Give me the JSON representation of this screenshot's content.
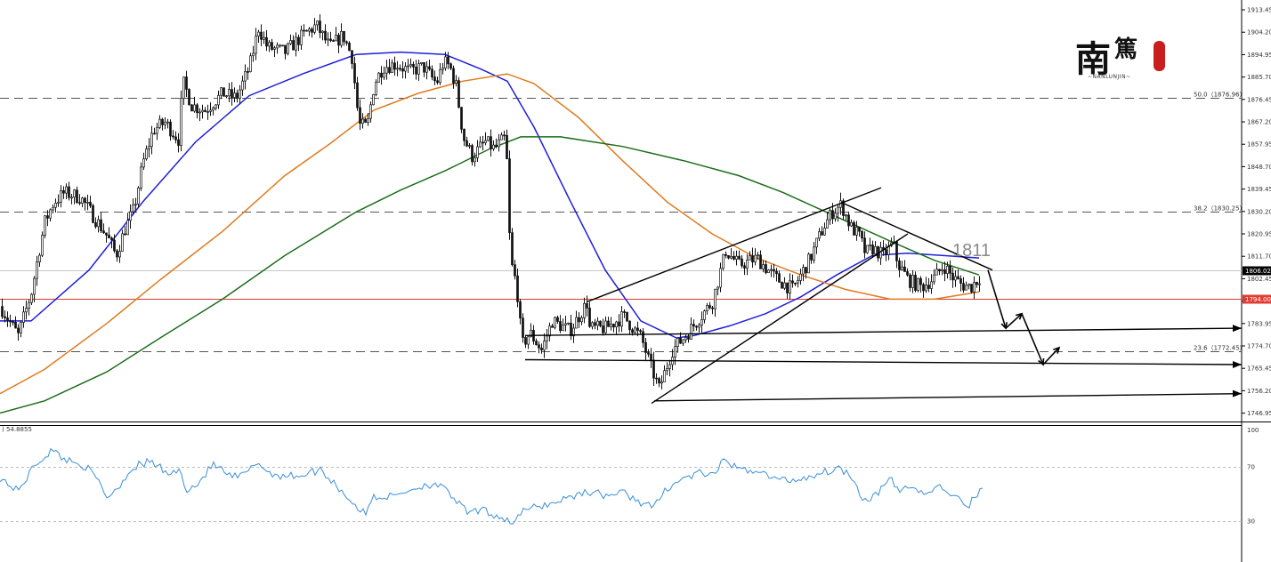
{
  "chart_data": [
    {
      "type": "candlestick",
      "panel": "price",
      "title": "",
      "ylim": [
        1743.5,
        1917.5
      ],
      "y_ticks": [
        "1913.45",
        "1904.20",
        "1894.95",
        "1885.70",
        "1876.45",
        "1867.20",
        "1857.95",
        "1848.70",
        "1839.45",
        "1830.20",
        "1820.95",
        "1811.70",
        "1802.45",
        "1793.20",
        "1783.95",
        "1774.70",
        "1765.45",
        "1756.20",
        "1746.95"
      ],
      "current_price": "1806.02",
      "horizontal_line": "1794.00",
      "annotation": "1811",
      "fibonacci": [
        {
          "level": 50.0,
          "price": 1876.96,
          "label": "50.0（1876.96）"
        },
        {
          "level": 38.2,
          "price": 1830.25,
          "label": "38.2（1830.25）"
        },
        {
          "level": 23.6,
          "price": 1772.45,
          "label": "23.6（1772.45）"
        }
      ],
      "close_path": [
        [
          0,
          1791
        ],
        [
          10,
          1785
        ],
        [
          20,
          1779
        ],
        [
          35,
          1797
        ],
        [
          42,
          1811
        ],
        [
          50,
          1826
        ],
        [
          60,
          1834
        ],
        [
          72,
          1838
        ],
        [
          90,
          1836
        ],
        [
          105,
          1828
        ],
        [
          120,
          1820
        ],
        [
          130,
          1812
        ],
        [
          140,
          1823
        ],
        [
          150,
          1831
        ],
        [
          160,
          1850
        ],
        [
          172,
          1864
        ],
        [
          185,
          1867
        ],
        [
          200,
          1860
        ],
        [
          205,
          1884
        ],
        [
          215,
          1874
        ],
        [
          230,
          1872
        ],
        [
          250,
          1879
        ],
        [
          265,
          1877
        ],
        [
          280,
          1890
        ],
        [
          290,
          1906
        ],
        [
          300,
          1898
        ],
        [
          320,
          1896
        ],
        [
          340,
          1903
        ],
        [
          355,
          1907
        ],
        [
          370,
          1898
        ],
        [
          385,
          1903
        ],
        [
          395,
          1894
        ],
        [
          403,
          1866
        ],
        [
          412,
          1865
        ],
        [
          420,
          1883
        ],
        [
          430,
          1890
        ],
        [
          445,
          1891
        ],
        [
          460,
          1888
        ],
        [
          475,
          1890
        ],
        [
          490,
          1883
        ],
        [
          498,
          1892
        ],
        [
          505,
          1890
        ],
        [
          512,
          1882
        ],
        [
          520,
          1861
        ],
        [
          530,
          1853
        ],
        [
          545,
          1859
        ],
        [
          555,
          1856
        ],
        [
          568,
          1861
        ],
        [
          573,
          1810
        ],
        [
          580,
          1800
        ],
        [
          586,
          1775
        ],
        [
          595,
          1780
        ],
        [
          608,
          1773
        ],
        [
          620,
          1785
        ],
        [
          640,
          1781
        ],
        [
          660,
          1793
        ],
        [
          662,
          1782
        ],
        [
          680,
          1782
        ],
        [
          700,
          1787
        ],
        [
          720,
          1778
        ],
        [
          730,
          1767
        ],
        [
          740,
          1757
        ],
        [
          755,
          1773
        ],
        [
          770,
          1779
        ],
        [
          785,
          1786
        ],
        [
          800,
          1793
        ],
        [
          815,
          1814
        ],
        [
          830,
          1808
        ],
        [
          850,
          1811
        ],
        [
          870,
          1803
        ],
        [
          890,
          1798
        ],
        [
          910,
          1811
        ],
        [
          925,
          1824
        ],
        [
          935,
          1830
        ],
        [
          945,
          1833
        ],
        [
          955,
          1824
        ],
        [
          965,
          1820
        ],
        [
          972,
          1813
        ],
        [
          980,
          1815
        ],
        [
          992,
          1812
        ],
        [
          1003,
          1817
        ],
        [
          1008,
          1809
        ],
        [
          1020,
          1802
        ],
        [
          1035,
          1799
        ],
        [
          1050,
          1803
        ],
        [
          1060,
          1808
        ],
        [
          1070,
          1803
        ],
        [
          1080,
          1800
        ],
        [
          1090,
          1799
        ],
        [
          1100,
          1803
        ]
      ],
      "moving_averages": [
        {
          "color": "#1f1fdc",
          "points": [
            [
              0,
              1785
            ],
            [
              35,
              1785
            ],
            [
              100,
              1806
            ],
            [
              160,
              1834
            ],
            [
              220,
              1859
            ],
            [
              280,
              1878
            ],
            [
              340,
              1887
            ],
            [
              400,
              1895
            ],
            [
              450,
              1896
            ],
            [
              500,
              1895
            ],
            [
              540,
              1889
            ],
            [
              570,
              1884
            ],
            [
              600,
              1865
            ],
            [
              640,
              1835
            ],
            [
              680,
              1806
            ],
            [
              720,
              1785
            ],
            [
              760,
              1778
            ],
            [
              780,
              1779
            ],
            [
              820,
              1783
            ],
            [
              860,
              1788
            ],
            [
              900,
              1795
            ],
            [
              940,
              1804
            ],
            [
              980,
              1812
            ],
            [
              1020,
              1813
            ],
            [
              1060,
              1812
            ],
            [
              1100,
              1811
            ]
          ]
        },
        {
          "color": "#e07a1e",
          "points": [
            [
              0,
              1755
            ],
            [
              50,
              1765
            ],
            [
              120,
              1784
            ],
            [
              180,
              1802
            ],
            [
              250,
              1822
            ],
            [
              320,
              1845
            ],
            [
              370,
              1858
            ],
            [
              420,
              1872
            ],
            [
              470,
              1879
            ],
            [
              520,
              1884
            ],
            [
              570,
              1887
            ],
            [
              600,
              1883
            ],
            [
              650,
              1869
            ],
            [
              700,
              1851
            ],
            [
              750,
              1834
            ],
            [
              800,
              1821
            ],
            [
              850,
              1811
            ],
            [
              900,
              1804
            ],
            [
              950,
              1798
            ],
            [
              1000,
              1794
            ],
            [
              1050,
              1794
            ],
            [
              1100,
              1797
            ]
          ]
        },
        {
          "color": "#1c6e1c",
          "points": [
            [
              0,
              1747
            ],
            [
              50,
              1752
            ],
            [
              120,
              1764
            ],
            [
              180,
              1778
            ],
            [
              250,
              1794
            ],
            [
              320,
              1812
            ],
            [
              400,
              1830
            ],
            [
              450,
              1839
            ],
            [
              500,
              1847
            ],
            [
              550,
              1856
            ],
            [
              585,
              1861
            ],
            [
              630,
              1861
            ],
            [
              700,
              1857
            ],
            [
              770,
              1851
            ],
            [
              830,
              1845
            ],
            [
              880,
              1838
            ],
            [
              940,
              1828
            ],
            [
              1000,
              1818
            ],
            [
              1050,
              1810
            ],
            [
              1100,
              1804
            ]
          ]
        }
      ],
      "trendlines": [
        {
          "from": [
            660,
            1793
          ],
          "to": [
            990,
            1840
          ]
        },
        {
          "from": [
            732,
            1751
          ],
          "to": [
            1020,
            1821
          ]
        },
        {
          "from": [
            945,
            1834
          ],
          "to": [
            1115,
            1806
          ]
        },
        {
          "from": [
            735,
            1752
          ],
          "to": [
            1395,
            1755
          ]
        },
        {
          "from": [
            590,
            1769
          ],
          "to": [
            1395,
            1767
          ]
        },
        {
          "from": [
            590,
            1779
          ],
          "to": [
            1395,
            1782
          ]
        }
      ],
      "forecast_path": [
        [
          1110,
          1806
        ],
        [
          1130,
          1782
        ],
        [
          1148,
          1788
        ],
        [
          1172,
          1767
        ],
        [
          1190,
          1774
        ]
      ]
    },
    {
      "type": "line",
      "panel": "oscillator",
      "label": ") 54.8855",
      "ylim": [
        0,
        100
      ],
      "y_ticks": [
        "100",
        "70",
        "30"
      ],
      "levels": [
        70,
        30
      ],
      "series": [
        {
          "color": "#3a8fd8",
          "points": [
            [
              0,
              62
            ],
            [
              20,
              52
            ],
            [
              40,
              72
            ],
            [
              58,
              82
            ],
            [
              75,
              75
            ],
            [
              95,
              71
            ],
            [
              110,
              60
            ],
            [
              120,
              48
            ],
            [
              130,
              53
            ],
            [
              150,
              70
            ],
            [
              170,
              74
            ],
            [
              190,
              64
            ],
            [
              200,
              68
            ],
            [
              210,
              54
            ],
            [
              220,
              56
            ],
            [
              240,
              72
            ],
            [
              260,
              62
            ],
            [
              275,
              64
            ],
            [
              290,
              74
            ],
            [
              300,
              66
            ],
            [
              320,
              63
            ],
            [
              340,
              64
            ],
            [
              360,
              68
            ],
            [
              380,
              55
            ],
            [
              400,
              41
            ],
            [
              410,
              35
            ],
            [
              420,
              48
            ],
            [
              440,
              48
            ],
            [
              460,
              53
            ],
            [
              475,
              56
            ],
            [
              490,
              58
            ],
            [
              510,
              47
            ],
            [
              525,
              36
            ],
            [
              540,
              38
            ],
            [
              560,
              34
            ],
            [
              575,
              29
            ],
            [
              590,
              38
            ],
            [
              605,
              41
            ],
            [
              620,
              43
            ],
            [
              640,
              48
            ],
            [
              660,
              52
            ],
            [
              680,
              49
            ],
            [
              700,
              51
            ],
            [
              720,
              44
            ],
            [
              735,
              40
            ],
            [
              750,
              55
            ],
            [
              770,
              62
            ],
            [
              790,
              66
            ],
            [
              800,
              62
            ],
            [
              815,
              76
            ],
            [
              830,
              67
            ],
            [
              850,
              68
            ],
            [
              870,
              61
            ],
            [
              890,
              60
            ],
            [
              910,
              63
            ],
            [
              930,
              67
            ],
            [
              945,
              69
            ],
            [
              960,
              61
            ],
            [
              970,
              45
            ],
            [
              985,
              50
            ],
            [
              1000,
              61
            ],
            [
              1010,
              52
            ],
            [
              1020,
              56
            ],
            [
              1040,
              50
            ],
            [
              1055,
              55
            ],
            [
              1070,
              50
            ],
            [
              1085,
              40
            ],
            [
              1095,
              47
            ],
            [
              1105,
              56
            ]
          ]
        }
      ]
    }
  ],
  "logo": {
    "glyph_1": "南",
    "glyph_2": "篤",
    "subtitle": "~NANLUNJIN~"
  },
  "colors": {
    "candle": "#111111",
    "horizontal_line": "#e03c31",
    "current_price_badge": "#000000",
    "hline_badge": "#e03c31",
    "grid_dash": "#555555",
    "seal": "#c81e1e"
  }
}
